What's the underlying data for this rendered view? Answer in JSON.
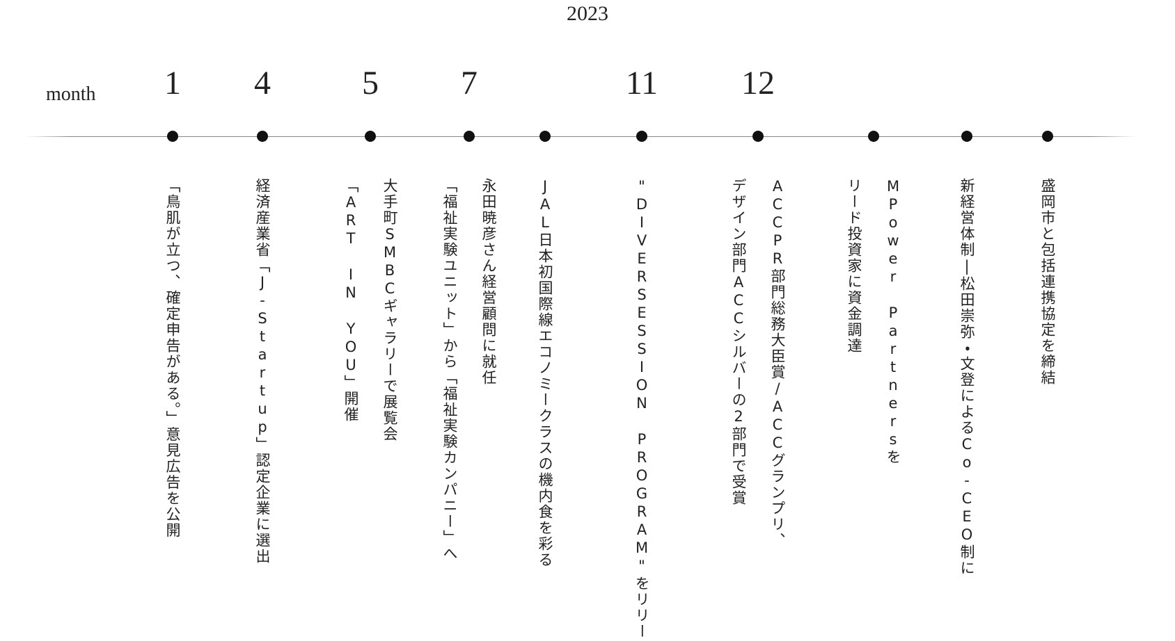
{
  "year": "2023",
  "month_label": "month",
  "points": [
    {
      "month": "1",
      "lines": [
        "「鳥肌が立つ、確定申告がある。」意見広告を公開"
      ]
    },
    {
      "month": "4",
      "lines": [
        "経済産業省「J-Startup」認定企業に選出"
      ]
    },
    {
      "month": "5",
      "lines": [
        "大手町SMBCギャラリーで展覧会",
        "「ART IN YOU」開催"
      ]
    },
    {
      "month": "7",
      "lines": [
        "永田暁彦さん経営顧問に就任",
        "「福祉実験ユニット」から「福祉実験カンパニー」へ"
      ]
    },
    {
      "lines": [
        "JAL日本初国際線エコノミークラスの機内食を彩る"
      ]
    },
    {
      "month": "11",
      "lines": [
        "\"DIVERSESSION PROGRAM\"をリリース"
      ]
    },
    {
      "month": "12",
      "lines": [
        "ACCPR部門総務大臣賞/ACCグランプリ、",
        "デザイン部門ACCシルバーの2部門で受賞"
      ]
    },
    {
      "lines": [
        "MPower Partnersを",
        "リード投資家に資金調達"
      ]
    },
    {
      "lines": [
        "新経営体制|松田崇弥・文登によるCo-CEO制に"
      ]
    },
    {
      "lines": [
        "盛岡市と包括連携協定を締結"
      ]
    }
  ]
}
